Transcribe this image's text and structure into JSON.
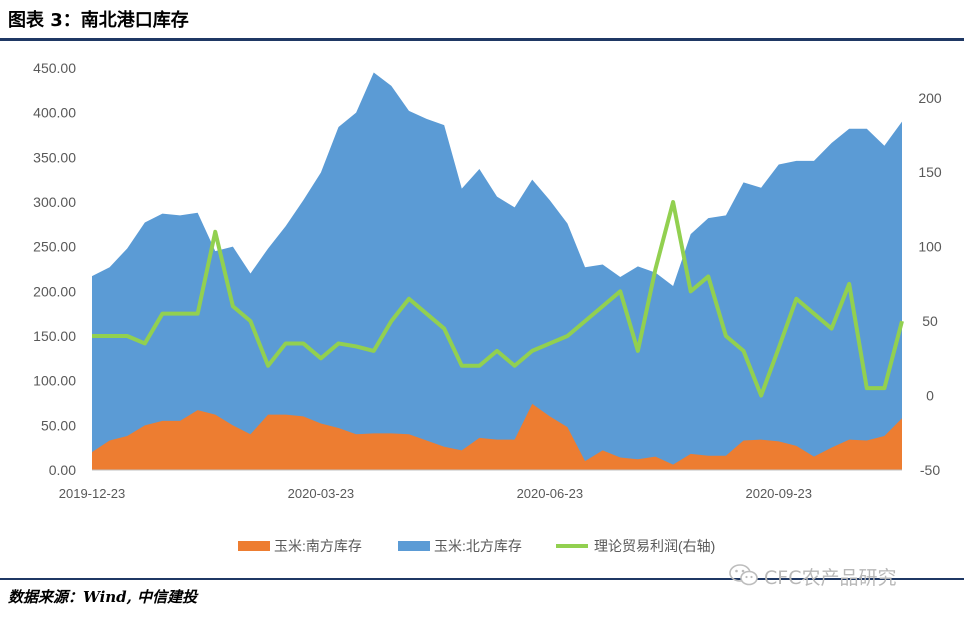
{
  "figure_title": "图表 3：南北港口库存",
  "source_text": "数据来源：Wind, 中信建投",
  "watermark_text": "CFC农产品研究",
  "chart_data": {
    "type": "area",
    "title": "",
    "xlabel": "",
    "ylabel": "",
    "y_left_ticks": [
      "0.00",
      "50.00",
      "100.00",
      "150.00",
      "200.00",
      "250.00",
      "300.00",
      "350.00",
      "400.00",
      "450.00"
    ],
    "y_left_range": [
      0,
      450
    ],
    "y_right_ticks": [
      "-50",
      "0",
      "50",
      "100",
      "150",
      "200"
    ],
    "y_right_range": [
      -50,
      220
    ],
    "x_tick_labels": [
      {
        "label": "2019-12-23",
        "index": 0
      },
      {
        "label": "2020-03-23",
        "index": 13
      },
      {
        "label": "2020-06-23",
        "index": 26
      },
      {
        "label": "2020-09-23",
        "index": 39
      }
    ],
    "legend_position": "bottom",
    "legend": [
      "玉米:南方库存",
      "玉米:北方库存",
      "理论贸易利润(右轴)"
    ],
    "grid": false,
    "colors": {
      "south": "#ed7d31",
      "north": "#5b9bd5",
      "profit": "#92d050"
    },
    "series": [
      {
        "name": "玉米:南方库存",
        "type": "area",
        "axis": "left",
        "values": [
          20,
          33,
          38,
          50,
          55,
          55,
          67,
          62,
          50,
          40,
          62,
          62,
          60,
          52,
          47,
          40,
          41,
          41,
          40,
          33,
          26,
          22,
          36,
          34,
          34,
          74,
          60,
          48,
          10,
          22,
          14,
          12,
          15,
          6,
          18,
          16,
          16,
          33,
          34,
          32,
          27,
          15,
          25,
          34,
          33,
          38,
          58
        ]
      },
      {
        "name": "玉米:北方库存",
        "type": "area",
        "axis": "left",
        "values": [
          217,
          227,
          248,
          277,
          287,
          285,
          288,
          245,
          250,
          220,
          248,
          273,
          302,
          333,
          384,
          400,
          445,
          430,
          402,
          393,
          386,
          315,
          337,
          306,
          294,
          325,
          302,
          276,
          227,
          230,
          216,
          228,
          221,
          206,
          264,
          282,
          285,
          322,
          316,
          342,
          346,
          346,
          366,
          382,
          382,
          363,
          390
        ]
      },
      {
        "name": "理论贸易利润(右轴)",
        "type": "line",
        "axis": "right",
        "values": [
          40,
          40,
          40,
          35,
          55,
          55,
          55,
          110,
          60,
          50,
          20,
          35,
          35,
          25,
          35,
          33,
          30,
          50,
          65,
          55,
          45,
          20,
          20,
          30,
          20,
          30,
          35,
          40,
          50,
          60,
          70,
          30,
          85,
          130,
          70,
          80,
          40,
          30,
          0,
          32,
          65,
          55,
          45,
          75,
          5,
          5,
          50
        ]
      }
    ]
  }
}
